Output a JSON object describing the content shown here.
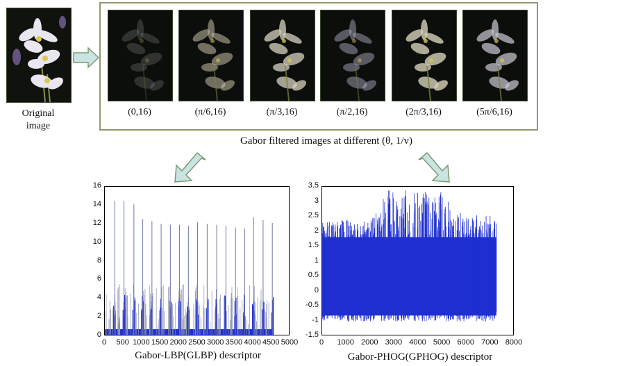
{
  "original": {
    "label_line1": "Original",
    "label_line2": "image"
  },
  "gabor_group": {
    "caption": "Gabor filtered images at different (θ, 1/v)",
    "thumbs": [
      {
        "label": "(0,16)"
      },
      {
        "label": "(π/6,16)"
      },
      {
        "label": "(π/3,16)"
      },
      {
        "label": "(π/2,16)"
      },
      {
        "label": "(2π/3,16)"
      },
      {
        "label": "(5π/6,16)"
      }
    ]
  },
  "colors": {
    "arrow_fill": "#c9e4e1",
    "arrow_stroke": "#7b9a74",
    "frame": "#8e9a6a",
    "series": "#1f2fd0",
    "background_image": "#0d0f0c"
  },
  "chart_data": [
    {
      "type": "line",
      "title": "Gabor-LBP(GLBP) descriptor",
      "xlim": [
        0,
        5000
      ],
      "ylim": [
        0,
        16
      ],
      "xticks": [
        "0",
        "500",
        "1000",
        "1500",
        "2000",
        "2500",
        "3000",
        "3500",
        "4000",
        "4500",
        "5000"
      ],
      "yticks": [
        "0",
        "2",
        "4",
        "6",
        "8",
        "10",
        "12",
        "14",
        "16"
      ],
      "series": [
        {
          "name": "GLBP",
          "x": [
            270,
            520,
            790,
            1030,
            1280,
            1530,
            1780,
            2030,
            2270,
            2520,
            2780,
            3040,
            3290,
            3550,
            3800,
            4040,
            4300,
            4550
          ],
          "values": [
            14.5,
            14.5,
            14.1,
            12.5,
            12.3,
            12.0,
            11.9,
            11.9,
            11.8,
            12.2,
            12.0,
            11.9,
            11.8,
            11.6,
            11.5,
            12.7,
            12.4,
            12.1
          ]
        }
      ]
    },
    {
      "type": "line",
      "title": "Gabor-PHOG(GPHOG) descriptor",
      "xlim": [
        0,
        8000
      ],
      "ylim": [
        -1.5,
        3.5
      ],
      "xticks": [
        "0",
        "1000",
        "2000",
        "3000",
        "4000",
        "5000",
        "6000",
        "7000",
        "8000"
      ],
      "yticks": [
        "3.5",
        "3",
        "2.5",
        "2",
        "1.5",
        "1",
        "0.5",
        "0",
        "-0.5",
        "-1",
        "-1.5"
      ],
      "series": [
        {
          "name": "GPHOG",
          "x": [
            0,
            1000,
            2000,
            2700,
            3500,
            4000,
            4500,
            5000,
            6000,
            7000,
            7300
          ],
          "values": [
            2.3,
            2.4,
            2.3,
            3.4,
            3.4,
            3.4,
            3.3,
            3.4,
            2.5,
            2.6,
            2.3
          ],
          "lower": [
            -1.0,
            -1.0,
            -1.0,
            -1.05,
            -1.05,
            -1.05,
            -1.05,
            -1.0,
            -1.0,
            -1.0,
            -1.0
          ]
        }
      ]
    }
  ]
}
